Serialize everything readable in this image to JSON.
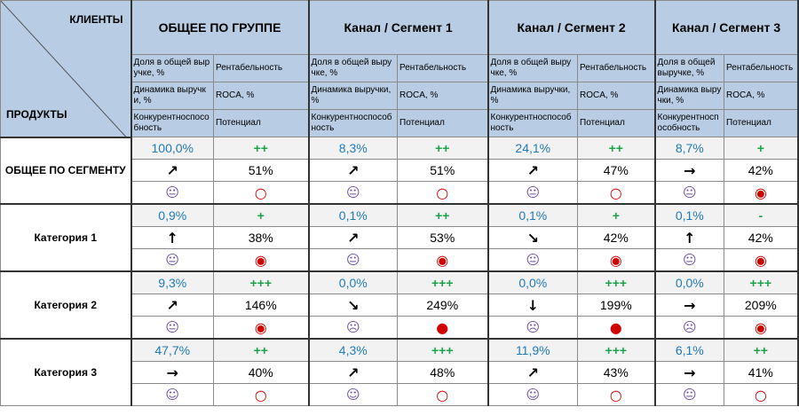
{
  "header": {
    "clients": "КЛИЕНТЫ",
    "products": "ПРОДУКТЫ"
  },
  "columns": [
    "ОБЩЕЕ ПО ГРУППЕ",
    "Канал / Сегмент 1",
    "Канал / Сегмент 2",
    "Канал / Сегмент 3"
  ],
  "subheaders": [
    [
      "Доля в общей выручке, %",
      "Рентабельность"
    ],
    [
      "Динамика выручки, %",
      "ROCA, %"
    ],
    [
      "Конкурентноспособность",
      "Потенциал"
    ]
  ],
  "groups": [
    {
      "label": "ОБЩЕЕ ПО СЕГМЕНТУ",
      "rows": [
        [
          "100,0%",
          "++",
          "8,3%",
          "++",
          "24,1%",
          "++",
          "8,7%",
          "+"
        ],
        [
          "↗",
          "51%",
          "↗",
          "51%",
          "↗",
          "47%",
          "→",
          "42%"
        ],
        [
          "😐",
          "○",
          "😐",
          "○",
          "😐",
          "○",
          "😐",
          "◉"
        ]
      ]
    },
    {
      "label": "Категория 1",
      "rows": [
        [
          "0,9%",
          "+",
          "0,1%",
          "++",
          "0,1%",
          "+",
          "0,1%",
          "-"
        ],
        [
          "↑",
          "38%",
          "↗",
          "53%",
          "↘",
          "42%",
          "↑",
          "42%"
        ],
        [
          "😐",
          "◉",
          "😐",
          "◉",
          "😐",
          "◉",
          "😐",
          "◉"
        ]
      ]
    },
    {
      "label": "Категория 2",
      "rows": [
        [
          "9,3%",
          "+++",
          "0,0%",
          "+++",
          "0,0%",
          "+++",
          "0,0%",
          "+++"
        ],
        [
          "↗",
          "146%",
          "↘",
          "249%",
          "↓",
          "199%",
          "→",
          "209%"
        ],
        [
          "😐",
          "◉",
          "☹",
          "●",
          "☹",
          "●",
          "☹",
          "◉"
        ]
      ]
    },
    {
      "label": "Категория 3",
      "rows": [
        [
          "47,7%",
          "++",
          "4,3%",
          "+++",
          "11,9%",
          "+++",
          "6,1%",
          "++"
        ],
        [
          "→",
          "40%",
          "↗",
          "48%",
          "↗",
          "43%",
          "→",
          "41%"
        ],
        [
          "☺",
          "○",
          "☺",
          "○",
          "☺",
          "○",
          "😐",
          "○"
        ]
      ]
    }
  ]
}
